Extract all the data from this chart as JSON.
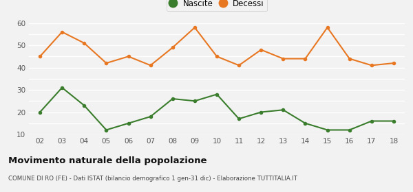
{
  "years": [
    2,
    3,
    4,
    5,
    6,
    7,
    8,
    9,
    10,
    11,
    12,
    13,
    14,
    15,
    16,
    17,
    18
  ],
  "nascite": [
    20,
    31,
    23,
    12,
    15,
    18,
    26,
    25,
    28,
    17,
    20,
    21,
    15,
    12,
    12,
    16,
    16
  ],
  "decessi": [
    45,
    56,
    51,
    42,
    45,
    41,
    49,
    58,
    45,
    41,
    48,
    44,
    44,
    58,
    44,
    41,
    42
  ],
  "nascite_color": "#3a7d2c",
  "decessi_color": "#e87722",
  "background_color": "#f2f2f2",
  "grid_color": "#ffffff",
  "ylim": [
    10,
    60
  ],
  "yticks": [
    10,
    15,
    20,
    25,
    30,
    35,
    40,
    45,
    50,
    55,
    60
  ],
  "ytick_labels": [
    "10",
    "",
    "20",
    "",
    "30",
    "",
    "40",
    "",
    "50",
    "",
    "60"
  ],
  "title": "Movimento naturale della popolazione",
  "subtitle": "COMUNE DI RO (FE) - Dati ISTAT (bilancio demografico 1 gen-31 dic) - Elaborazione TUTTITALIA.IT",
  "legend_nascite": "Nascite",
  "legend_decessi": "Decessi",
  "marker_size": 4,
  "line_width": 1.5
}
